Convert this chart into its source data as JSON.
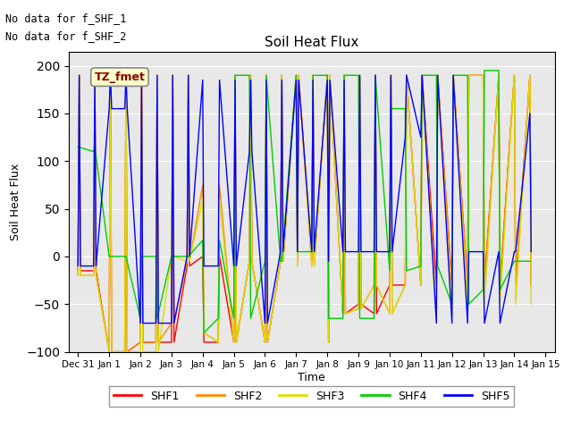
{
  "title": "Soil Heat Flux",
  "ylabel": "Soil Heat Flux",
  "xlabel": "Time",
  "ylim": [
    -100,
    215
  ],
  "yticks": [
    -100,
    -50,
    0,
    50,
    100,
    150,
    200
  ],
  "text_annotations": [
    "No data for f_SHF_1",
    "No data for f_SHF_2"
  ],
  "legend_label": "TZ_fmet",
  "colors": {
    "SHF1": "#ff0000",
    "SHF2": "#ff8800",
    "SHF3": "#dddd00",
    "SHF4": "#00cc00",
    "SHF5": "#0000ff"
  },
  "xtick_positions": [
    0,
    1,
    2,
    3,
    4,
    5,
    6,
    7,
    8,
    9,
    10,
    11,
    12,
    13,
    14,
    15
  ],
  "xtick_labels": [
    "Dec 31",
    "Jan 1",
    "Jan 2",
    "Jan 3",
    "Jan 4",
    "Jan 5",
    "Jan 6",
    "Jan 7",
    "Jan 8",
    "Jan 9",
    "Jan 10",
    "Jan 11",
    "Jan 12",
    "Jan 13",
    "Jan 14",
    "Jan 15"
  ],
  "series": {
    "SHF1": {
      "x": [
        0.0,
        0.04,
        0.08,
        0.5,
        0.54,
        0.58,
        1.0,
        1.04,
        1.08,
        1.5,
        1.54,
        1.58,
        2.0,
        2.04,
        2.08,
        2.5,
        2.54,
        2.58,
        3.0,
        3.04,
        3.08,
        3.5,
        3.54,
        3.58,
        4.0,
        4.04,
        4.5,
        4.54,
        5.0,
        5.04,
        5.08,
        5.5,
        5.54,
        5.58,
        6.0,
        6.04,
        6.08,
        6.5,
        6.54,
        6.58,
        7.0,
        7.04,
        7.08,
        7.5,
        7.54,
        7.58,
        8.0,
        8.04,
        8.08,
        8.5,
        8.54,
        8.58,
        9.0,
        9.04,
        9.08,
        9.5,
        9.54,
        9.58,
        10.0,
        10.04,
        10.08,
        10.5,
        10.54,
        11.0,
        11.04,
        11.5,
        11.54,
        12.0,
        12.04,
        12.5,
        12.54,
        13.0,
        13.04,
        13.5,
        13.54,
        14.0,
        14.04,
        14.5,
        14.54
      ],
      "y": [
        -15,
        190,
        -15,
        -15,
        190,
        -15,
        -100,
        190,
        -100,
        -100,
        190,
        -100,
        -90,
        190,
        -90,
        -90,
        190,
        -90,
        -90,
        190,
        -90,
        -10,
        190,
        -10,
        0,
        -90,
        -90,
        0,
        -90,
        190,
        -90,
        -5,
        190,
        -5,
        -90,
        190,
        -90,
        -5,
        190,
        -5,
        190,
        -5,
        190,
        -5,
        190,
        -5,
        190,
        -90,
        190,
        -60,
        190,
        -60,
        -50,
        190,
        -50,
        -60,
        190,
        -60,
        -30,
        190,
        -30,
        -30,
        190,
        -30,
        190,
        -30,
        190,
        -30,
        190,
        -30,
        190,
        190,
        -30,
        190,
        -30,
        190,
        -30,
        190,
        -30
      ]
    },
    "SHF2": {
      "x": [
        0.0,
        0.04,
        0.08,
        0.5,
        0.54,
        0.58,
        1.0,
        1.04,
        1.08,
        1.5,
        1.54,
        1.58,
        2.0,
        2.04,
        2.08,
        2.5,
        2.54,
        2.58,
        3.0,
        3.04,
        3.08,
        3.5,
        3.54,
        3.58,
        4.0,
        4.04,
        4.5,
        4.54,
        5.0,
        5.04,
        5.08,
        5.5,
        5.54,
        5.58,
        6.0,
        6.04,
        6.08,
        6.5,
        6.54,
        6.58,
        7.0,
        7.04,
        7.08,
        7.5,
        7.54,
        7.58,
        8.0,
        8.04,
        8.08,
        8.5,
        8.54,
        8.58,
        9.0,
        9.04,
        9.08,
        9.5,
        9.54,
        9.58,
        10.0,
        10.04,
        10.08,
        10.5,
        10.54,
        11.0,
        11.04,
        11.5,
        11.54,
        12.0,
        12.04,
        12.5,
        12.54,
        13.0,
        13.04,
        13.5,
        13.54,
        14.0,
        14.04,
        14.5,
        14.54
      ],
      "y": [
        -20,
        190,
        -20,
        -20,
        190,
        -20,
        -100,
        190,
        -100,
        -100,
        190,
        -100,
        -90,
        190,
        -90,
        -90,
        190,
        -90,
        -70,
        190,
        -70,
        -5,
        190,
        -5,
        75,
        -80,
        -90,
        75,
        -90,
        190,
        -90,
        -5,
        190,
        -5,
        -90,
        190,
        -90,
        -5,
        190,
        -5,
        190,
        -10,
        190,
        -10,
        190,
        -10,
        190,
        -90,
        190,
        -60,
        190,
        -60,
        -55,
        190,
        -55,
        -30,
        190,
        -30,
        -60,
        190,
        -60,
        -30,
        190,
        -30,
        190,
        -60,
        190,
        -30,
        190,
        -30,
        190,
        190,
        -30,
        190,
        -30,
        190,
        -30,
        190,
        -30
      ]
    },
    "SHF3": {
      "x": [
        0.0,
        0.04,
        0.08,
        0.5,
        0.54,
        0.58,
        1.0,
        1.04,
        1.08,
        1.5,
        1.54,
        1.58,
        2.0,
        2.04,
        2.08,
        2.5,
        2.54,
        2.58,
        3.0,
        3.04,
        3.08,
        3.5,
        3.54,
        3.58,
        4.0,
        4.04,
        4.5,
        4.54,
        5.0,
        5.04,
        5.08,
        5.5,
        5.54,
        5.58,
        6.0,
        6.04,
        6.08,
        6.5,
        6.54,
        6.58,
        7.0,
        7.04,
        7.08,
        7.5,
        7.54,
        7.58,
        8.0,
        8.04,
        8.08,
        8.5,
        8.54,
        8.58,
        9.0,
        9.04,
        9.08,
        9.5,
        9.54,
        9.58,
        10.0,
        10.04,
        10.08,
        10.5,
        10.54,
        11.0,
        11.04,
        11.5,
        11.54,
        12.0,
        12.04,
        12.5,
        12.54,
        13.0,
        13.04,
        13.5,
        13.54,
        14.0,
        14.04,
        14.5,
        14.54
      ],
      "y": [
        -20,
        190,
        -20,
        -20,
        190,
        -20,
        -100,
        190,
        -100,
        -100,
        190,
        -100,
        -100,
        190,
        -100,
        -100,
        190,
        -100,
        0,
        190,
        0,
        -5,
        190,
        -5,
        60,
        -80,
        -90,
        60,
        -90,
        190,
        -90,
        -5,
        190,
        -5,
        -90,
        190,
        -90,
        -5,
        190,
        -5,
        190,
        -10,
        190,
        -10,
        190,
        -10,
        190,
        -90,
        190,
        -60,
        190,
        -60,
        -55,
        190,
        -55,
        -30,
        190,
        -30,
        -60,
        190,
        -60,
        -30,
        190,
        -30,
        190,
        -60,
        190,
        -60,
        190,
        -50,
        190,
        190,
        -50,
        190,
        -50,
        190,
        -50,
        190,
        -50
      ]
    },
    "SHF4": {
      "x": [
        0.0,
        0.5,
        0.54,
        1.0,
        1.04,
        1.5,
        1.54,
        2.0,
        2.04,
        2.5,
        2.54,
        3.0,
        3.04,
        3.5,
        3.54,
        4.0,
        4.04,
        4.5,
        4.54,
        5.0,
        5.04,
        5.5,
        5.54,
        6.0,
        6.04,
        6.5,
        6.54,
        7.0,
        7.04,
        7.5,
        7.54,
        8.0,
        8.04,
        8.5,
        8.54,
        9.0,
        9.04,
        9.5,
        9.54,
        10.0,
        10.04,
        10.5,
        10.54,
        11.0,
        11.04,
        11.5,
        11.54,
        12.0,
        12.04,
        12.5,
        12.54,
        13.0,
        13.04,
        13.5,
        13.54,
        14.0,
        14.04,
        14.5
      ],
      "y": [
        115,
        110,
        115,
        0,
        0,
        0,
        0,
        -65,
        0,
        0,
        -65,
        0,
        0,
        0,
        0,
        17,
        -80,
        -65,
        17,
        -65,
        190,
        190,
        -65,
        -5,
        190,
        -5,
        -5,
        190,
        5,
        5,
        190,
        190,
        -65,
        -65,
        190,
        190,
        -65,
        -65,
        190,
        -15,
        155,
        155,
        -15,
        -10,
        190,
        190,
        -10,
        -50,
        190,
        190,
        -50,
        -35,
        195,
        195,
        -35,
        -5,
        -5,
        -5
      ]
    },
    "SHF5": {
      "x": [
        0.0,
        0.04,
        0.08,
        0.5,
        0.54,
        0.58,
        1.0,
        1.04,
        1.08,
        1.5,
        1.54,
        1.58,
        2.0,
        2.04,
        2.08,
        2.5,
        2.54,
        2.58,
        3.0,
        3.04,
        3.08,
        3.5,
        3.54,
        3.58,
        4.0,
        4.04,
        4.5,
        4.54,
        5.0,
        5.04,
        5.08,
        5.5,
        5.54,
        5.58,
        6.0,
        6.04,
        6.08,
        6.5,
        6.54,
        6.58,
        7.0,
        7.04,
        7.08,
        7.5,
        7.54,
        7.58,
        8.0,
        8.04,
        8.08,
        8.5,
        8.54,
        8.58,
        9.0,
        9.04,
        9.08,
        9.5,
        9.54,
        9.58,
        10.0,
        10.04,
        10.08,
        10.5,
        10.54,
        11.0,
        11.04,
        11.5,
        11.54,
        12.0,
        12.04,
        12.5,
        12.54,
        13.0,
        13.04,
        13.5,
        13.54,
        14.0,
        14.04,
        14.5,
        14.54
      ],
      "y": [
        -10,
        190,
        -10,
        -10,
        190,
        -10,
        155,
        190,
        155,
        155,
        190,
        155,
        -70,
        190,
        -70,
        -70,
        190,
        -70,
        -70,
        190,
        -70,
        0,
        190,
        0,
        185,
        -10,
        -10,
        185,
        -10,
        185,
        -10,
        110,
        185,
        110,
        -70,
        185,
        -70,
        5,
        185,
        5,
        185,
        5,
        185,
        5,
        185,
        5,
        185,
        -5,
        185,
        5,
        185,
        5,
        5,
        190,
        5,
        5,
        190,
        5,
        5,
        190,
        5,
        125,
        190,
        125,
        190,
        -70,
        190,
        -70,
        190,
        -70,
        5,
        5,
        -70,
        5,
        -70,
        5,
        5,
        150,
        5
      ]
    }
  }
}
